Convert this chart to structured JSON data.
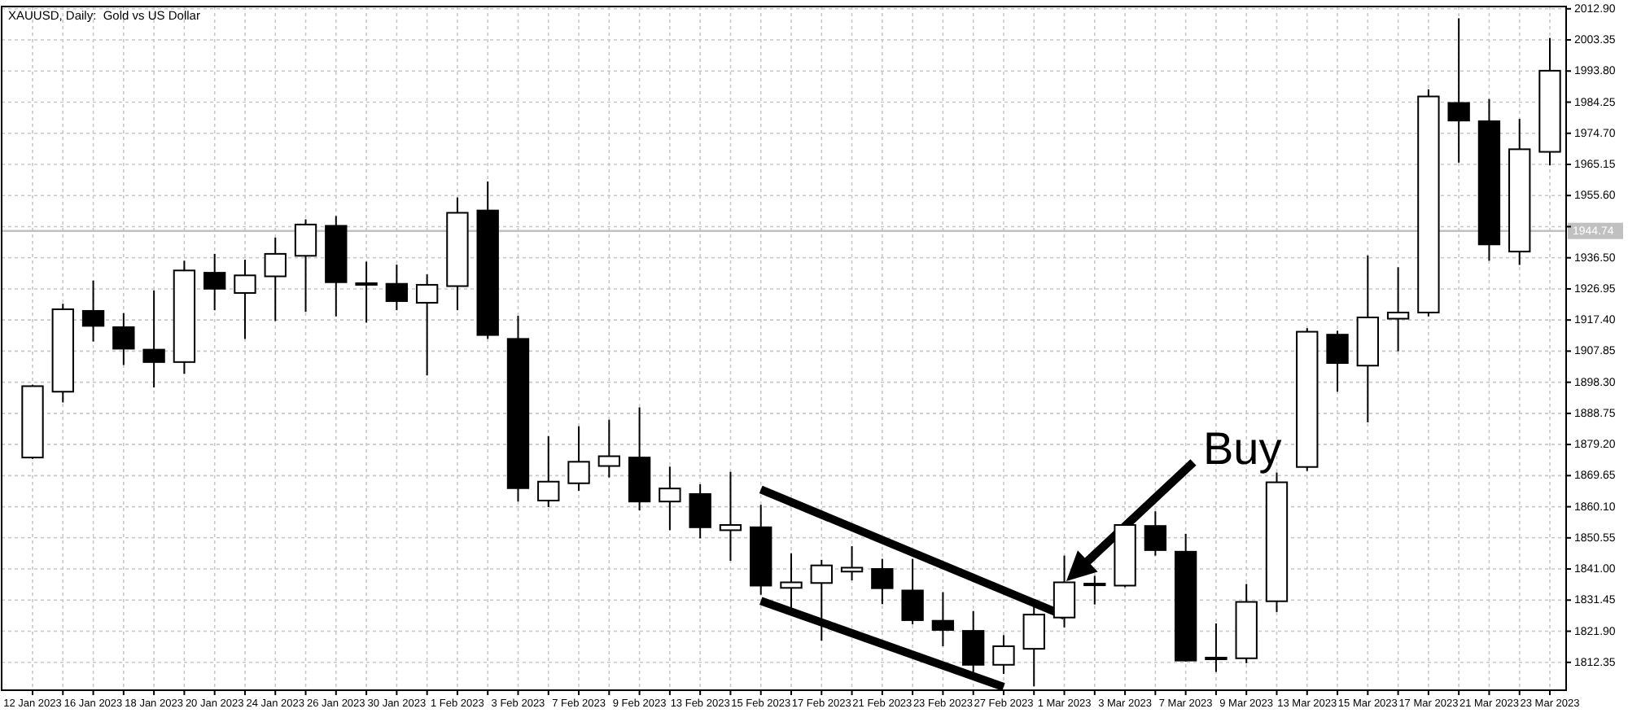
{
  "chart_data": {
    "type": "candlestick",
    "title": "XAUUSD, Daily:  Gold vs US Dollar",
    "categories": [
      "12 Jan 2023",
      null,
      "16 Jan 2023",
      null,
      "18 Jan 2023",
      null,
      "20 Jan 2023",
      null,
      "24 Jan 2023",
      null,
      "26 Jan 2023",
      null,
      "30 Jan 2023",
      null,
      "1 Feb 2023",
      null,
      "3 Feb 2023",
      null,
      "7 Feb 2023",
      null,
      "9 Feb 2023",
      null,
      "13 Feb 2023",
      null,
      "15 Feb 2023",
      null,
      "17 Feb 2023",
      null,
      "21 Feb 2023",
      null,
      "23 Feb 2023",
      null,
      "27 Feb 2023",
      null,
      "1 Mar 2023",
      null,
      "3 Mar 2023",
      null,
      "7 Mar 2023",
      null,
      "9 Mar 2023",
      null,
      "13 Mar 2023",
      null,
      "15 Mar 2023",
      null,
      "17 Mar 2023",
      null,
      "21 Mar 2023",
      null,
      "23 Mar 2023"
    ],
    "ohlc": [
      [
        1875.2,
        1897.5,
        1874.8,
        1897.1
      ],
      [
        1895.4,
        1922.4,
        1892.1,
        1920.7
      ],
      [
        1920.2,
        1929.5,
        1910.8,
        1915.6
      ],
      [
        1915.2,
        1919.5,
        1903.6,
        1908.6
      ],
      [
        1908.3,
        1926.5,
        1896.7,
        1904.5
      ],
      [
        1904.5,
        1935.6,
        1900.9,
        1932.6
      ],
      [
        1931.9,
        1937.7,
        1920.4,
        1927.0
      ],
      [
        1925.7,
        1935.9,
        1911.6,
        1931.1
      ],
      [
        1930.8,
        1942.7,
        1917.1,
        1937.7
      ],
      [
        1937.1,
        1948.3,
        1919.9,
        1946.7
      ],
      [
        1946.3,
        1949.3,
        1918.5,
        1929.0
      ],
      [
        1928.6,
        1935.3,
        1916.6,
        1928.7
      ],
      [
        1928.5,
        1934.4,
        1920.4,
        1923.2
      ],
      [
        1922.7,
        1931.4,
        1900.4,
        1928.2
      ],
      [
        1927.8,
        1955.0,
        1920.4,
        1950.3
      ],
      [
        1951.0,
        1959.9,
        1911.6,
        1912.8
      ],
      [
        1911.6,
        1918.7,
        1861.7,
        1865.8
      ],
      [
        1862.0,
        1881.8,
        1860.0,
        1867.8
      ],
      [
        1867.3,
        1884.8,
        1865.0,
        1873.9
      ],
      [
        1872.6,
        1886.8,
        1869.1,
        1875.6
      ],
      [
        1875.2,
        1890.6,
        1859.0,
        1861.7
      ],
      [
        1861.7,
        1872.4,
        1852.9,
        1865.7
      ],
      [
        1864.0,
        1867.0,
        1850.4,
        1853.8
      ],
      [
        1852.9,
        1870.8,
        1843.5,
        1854.5
      ],
      [
        1853.8,
        1860.7,
        1833.1,
        1835.9
      ],
      [
        1835.2,
        1845.8,
        1828.1,
        1836.9
      ],
      [
        1836.7,
        1843.8,
        1819.0,
        1842.1
      ],
      [
        1840.2,
        1848.0,
        1837.5,
        1841.4
      ],
      [
        1841.0,
        1844.1,
        1830.2,
        1835.1
      ],
      [
        1834.4,
        1844.1,
        1824.0,
        1825.3
      ],
      [
        1825.1,
        1833.9,
        1817.3,
        1822.3
      ],
      [
        1822.0,
        1828.1,
        1808.3,
        1811.6
      ],
      [
        1811.6,
        1820.7,
        1808.8,
        1817.3
      ],
      [
        1816.5,
        1831.4,
        1805.0,
        1827.0
      ],
      [
        1826.1,
        1845.1,
        1823.1,
        1836.9
      ],
      [
        1836.3,
        1838.9,
        1830.1,
        1836.5
      ],
      [
        1835.9,
        1855.0,
        1835.4,
        1854.5
      ],
      [
        1854.2,
        1858.7,
        1845.1,
        1846.8
      ],
      [
        1846.3,
        1851.8,
        1812.6,
        1812.9
      ],
      [
        1813.6,
        1824.3,
        1809.4,
        1813.8
      ],
      [
        1813.6,
        1836.4,
        1812.1,
        1830.9
      ],
      [
        1831.1,
        1870.6,
        1827.8,
        1867.6
      ],
      [
        1872.3,
        1914.9,
        1871.1,
        1913.8
      ],
      [
        1912.9,
        1914.1,
        1895.4,
        1904.2
      ],
      [
        1903.4,
        1937.2,
        1886.0,
        1918.2
      ],
      [
        1917.8,
        1933.6,
        1907.8,
        1919.7
      ],
      [
        1919.7,
        1988.2,
        1918.5,
        1986.0
      ],
      [
        1984.0,
        2010.0,
        1965.7,
        1978.6
      ],
      [
        1978.4,
        1985.2,
        1935.6,
        1940.6
      ],
      [
        1938.4,
        1979.1,
        1934.3,
        1969.8
      ],
      [
        1969.0,
        2003.9,
        1964.9,
        1993.9
      ]
    ],
    "colors": [
      "#ffffff",
      "#ffffff",
      "#000000",
      "#000000",
      "#000000",
      "#ffffff",
      "#000000",
      "#ffffff",
      "#ffffff",
      "#ffffff",
      "#000000",
      "#ffffff",
      "#000000",
      "#ffffff",
      "#ffffff",
      "#000000",
      "#000000",
      "#ffffff",
      "#ffffff",
      "#ffffff",
      "#000000",
      "#ffffff",
      "#000000",
      "#ffffff",
      "#000000",
      "#ffffff",
      "#ffffff",
      "#ffffff",
      "#000000",
      "#000000",
      "#000000",
      "#000000",
      "#ffffff",
      "#ffffff",
      "#ffffff",
      "#ffffff",
      "#ffffff",
      "#000000",
      "#000000",
      "#ffffff",
      "#ffffff",
      "#ffffff",
      "#ffffff",
      "#000000",
      "#ffffff",
      "#ffffff",
      "#ffffff",
      "#000000",
      "#000000",
      "#ffffff",
      "#ffffff"
    ],
    "series": [
      {
        "type": "line",
        "color": "#000000",
        "x": [
          "15 Feb 2023",
          "1 Mar 2023"
        ],
        "values": [
          1865.4,
          1826.7
        ]
      },
      {
        "type": "line",
        "color": "#000000",
        "x": [
          "15 Feb 2023",
          "27 Feb 2023"
        ],
        "values": [
          1831.2,
          1804.8
        ]
      }
    ],
    "ylim": [
      1803.8,
      2013.6
    ],
    "yticks": [
      {
        "value": 2012.9,
        "label": "2012.90"
      },
      {
        "value": 2003.35,
        "label": "2003.35"
      },
      {
        "value": 1993.8,
        "label": "1993.80"
      },
      {
        "value": 1984.25,
        "label": "1984.25"
      },
      {
        "value": 1974.7,
        "label": "1974.70"
      },
      {
        "value": 1965.15,
        "label": "1965.15"
      },
      {
        "value": 1955.6,
        "label": "1955.60"
      },
      {
        "value": 1946.05,
        "label": null
      },
      {
        "value": 1936.5,
        "label": "1936.50"
      },
      {
        "value": 1926.95,
        "label": "1926.95"
      },
      {
        "value": 1917.4,
        "label": "1917.40"
      },
      {
        "value": 1907.85,
        "label": "1907.85"
      },
      {
        "value": 1898.3,
        "label": "1898.30"
      },
      {
        "value": 1888.75,
        "label": "1888.75"
      },
      {
        "value": 1879.2,
        "label": "1879.20"
      },
      {
        "value": 1869.65,
        "label": "1869.65"
      },
      {
        "value": 1860.1,
        "label": "1860.10"
      },
      {
        "value": 1850.55,
        "label": "1850.55"
      },
      {
        "value": 1841.0,
        "label": "1841.00"
      },
      {
        "value": 1831.45,
        "label": "1831.45"
      },
      {
        "value": 1821.9,
        "label": "1821.90"
      },
      {
        "value": 1812.35,
        "label": "1812.35"
      }
    ],
    "grid": true,
    "ref_lines": [
      {
        "axis": "y",
        "value": 1944.74,
        "label": "1944.74",
        "color": "#c0c0c0"
      }
    ],
    "annotations": [
      "Buy"
    ]
  }
}
